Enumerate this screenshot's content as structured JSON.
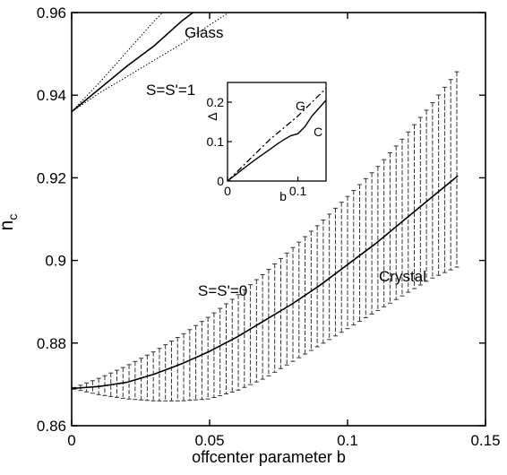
{
  "chart_data": {
    "type": "line",
    "xlabel": "offcenter parameter b",
    "ylabel": "n",
    "ylabel_subscript": "c",
    "xlim": [
      0,
      0.15
    ],
    "ylim": [
      0.86,
      0.96
    ],
    "x_ticks": [
      0,
      0.05,
      0.1,
      0.15
    ],
    "x_tick_labels": [
      "0",
      "0.05",
      "0.1",
      "0.15"
    ],
    "y_ticks": [
      0.86,
      0.88,
      0.9,
      0.92,
      0.94,
      0.96
    ],
    "y_tick_labels": [
      "0.86",
      "0.88",
      "0.9",
      "0.92",
      "0.94",
      "0.96"
    ],
    "grid": false,
    "annotations": {
      "glass": "Glass",
      "glass_params": "S=S'=1",
      "crystal": "Crystal",
      "crystal_params": "S=S'=0"
    },
    "series": [
      {
        "name": "Glass",
        "style": "solid",
        "x": [
          0,
          0.01,
          0.02,
          0.03,
          0.04,
          0.044
        ],
        "y": [
          0.936,
          0.9415,
          0.947,
          0.952,
          0.958,
          0.96
        ]
      },
      {
        "name": "Glass",
        "style": "dotted-upper",
        "x": [
          0,
          0.01,
          0.02,
          0.03,
          0.033
        ],
        "y": [
          0.936,
          0.943,
          0.9505,
          0.958,
          0.96
        ]
      },
      {
        "name": "Glass",
        "style": "dotted-lower",
        "x": [
          0,
          0.01,
          0.02,
          0.03,
          0.04,
          0.05,
          0.057
        ],
        "y": [
          0.936,
          0.9405,
          0.9445,
          0.9485,
          0.9525,
          0.957,
          0.96
        ]
      },
      {
        "name": "Crystal",
        "style": "solid",
        "x": [
          0,
          0.01,
          0.02,
          0.03,
          0.04,
          0.05,
          0.06,
          0.07,
          0.08,
          0.09,
          0.1,
          0.11,
          0.12,
          0.13,
          0.14
        ],
        "y": [
          0.869,
          0.8695,
          0.8705,
          0.8725,
          0.875,
          0.878,
          0.8815,
          0.8855,
          0.8895,
          0.894,
          0.899,
          0.904,
          0.9095,
          0.915,
          0.9205
        ]
      },
      {
        "name": "Crystal",
        "style": "band-upper",
        "x": [
          0,
          0.01,
          0.02,
          0.03,
          0.04,
          0.05,
          0.06,
          0.07,
          0.08,
          0.09,
          0.1,
          0.11,
          0.12,
          0.13,
          0.14
        ],
        "y": [
          0.869,
          0.8715,
          0.8745,
          0.878,
          0.882,
          0.8865,
          0.8915,
          0.897,
          0.903,
          0.909,
          0.9155,
          0.922,
          0.9295,
          0.9375,
          0.946
        ]
      },
      {
        "name": "Crystal",
        "style": "band-lower",
        "x": [
          0,
          0.01,
          0.02,
          0.03,
          0.04,
          0.05,
          0.06,
          0.07,
          0.08,
          0.09,
          0.1,
          0.11,
          0.12,
          0.13,
          0.14
        ],
        "y": [
          0.869,
          0.8675,
          0.8665,
          0.866,
          0.866,
          0.8665,
          0.8685,
          0.8715,
          0.8755,
          0.8795,
          0.8835,
          0.8875,
          0.8915,
          0.8955,
          0.8985
        ]
      }
    ],
    "inset": {
      "type": "line",
      "xlabel": "b",
      "ylabel": "Δ",
      "xlim": [
        0,
        0.14
      ],
      "ylim": [
        0,
        0.25
      ],
      "x_ticks": [
        0,
        0.1
      ],
      "x_tick_labels": [
        "0",
        "0.1"
      ],
      "y_ticks": [
        0,
        0.1,
        0.2
      ],
      "y_tick_labels": [
        "0",
        "0.1",
        "0.2"
      ],
      "series": [
        {
          "name": "G",
          "style": "dash-dot",
          "x": [
            0,
            0.02,
            0.04,
            0.06,
            0.08,
            0.1,
            0.12,
            0.14
          ],
          "y": [
            0,
            0.035,
            0.07,
            0.105,
            0.135,
            0.165,
            0.2,
            0.235
          ]
        },
        {
          "name": "C",
          "style": "solid",
          "x": [
            0,
            0.02,
            0.04,
            0.06,
            0.07,
            0.08,
            0.09,
            0.1,
            0.11,
            0.12,
            0.13,
            0.14
          ],
          "y": [
            0,
            0.028,
            0.055,
            0.08,
            0.093,
            0.105,
            0.115,
            0.12,
            0.138,
            0.165,
            0.185,
            0.205
          ]
        }
      ]
    }
  }
}
